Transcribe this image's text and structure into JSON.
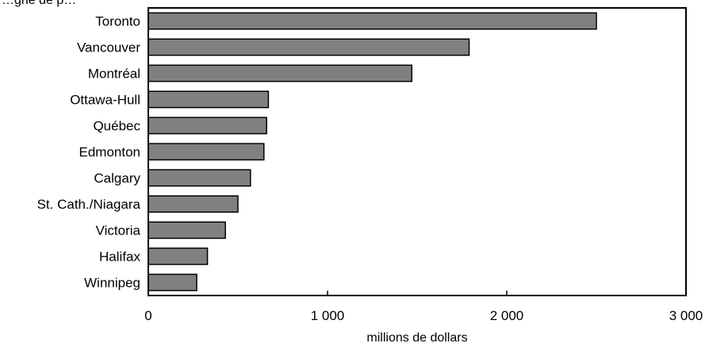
{
  "chart_data": {
    "type": "bar",
    "orientation": "horizontal",
    "title": "",
    "top_partial_text": "…gne de p…",
    "categories": [
      "Toronto",
      "Vancouver",
      "Montréal",
      "Ottawa-Hull",
      "Québec",
      "Edmonton",
      "Calgary",
      "St. Cath./Niagara",
      "Victoria",
      "Halifax",
      "Winnipeg"
    ],
    "values": [
      2500,
      1790,
      1470,
      670,
      660,
      645,
      570,
      500,
      430,
      330,
      270
    ],
    "xlabel": "millions de dollars",
    "ylabel": "",
    "xlim": [
      0,
      3000
    ],
    "xticks": [
      0,
      1000,
      2000,
      3000
    ],
    "xtick_labels": [
      "0",
      "1 000",
      "2 000",
      "3 000"
    ],
    "grid": false,
    "bar_color": "#808080"
  }
}
